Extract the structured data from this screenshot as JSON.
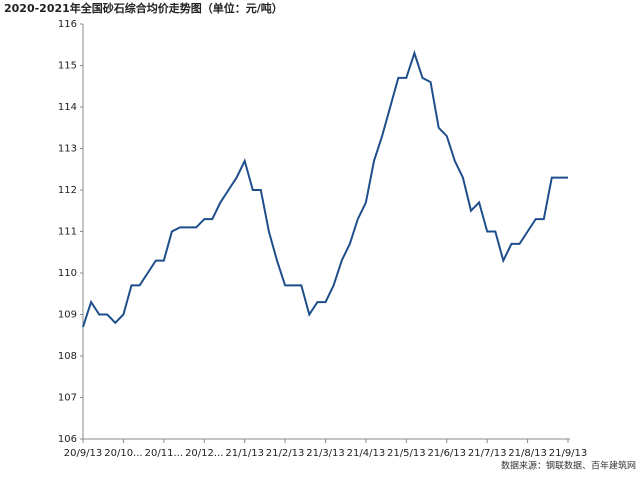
{
  "chart_data": {
    "type": "line",
    "title": "2020-2021年全国砂石综合均价走势图（单位：元/吨）",
    "source": "数据来源：钢联数据、百年建筑网",
    "categories": [
      "20/9/13",
      null,
      null,
      null,
      null,
      "20/10...",
      null,
      null,
      null,
      null,
      "20/11...",
      null,
      null,
      null,
      null,
      "20/12...",
      null,
      null,
      null,
      null,
      "21/1/13",
      null,
      null,
      null,
      null,
      "21/2/13",
      null,
      null,
      null,
      null,
      "21/3/13",
      null,
      null,
      null,
      null,
      "21/4/13",
      null,
      null,
      null,
      null,
      "21/5/13",
      null,
      null,
      null,
      null,
      "21/6/13",
      null,
      null,
      null,
      null,
      "21/7/13",
      null,
      null,
      null,
      null,
      "21/8/13",
      null,
      null,
      null,
      null,
      "21/9/13"
    ],
    "series": [
      {
        "name": "砂石综合均价",
        "color": "#1f4e8c",
        "values": [
          108.7,
          109.3,
          109.0,
          109.0,
          108.8,
          109.0,
          109.7,
          109.7,
          110.0,
          110.3,
          110.3,
          111.0,
          111.1,
          111.1,
          111.1,
          111.3,
          111.3,
          111.7,
          112.0,
          112.3,
          112.7,
          112.0,
          112.0,
          111.0,
          110.3,
          109.7,
          109.7,
          109.7,
          109.0,
          109.3,
          109.3,
          109.7,
          110.3,
          110.7,
          111.3,
          111.7,
          112.7,
          113.3,
          114.0,
          114.7,
          114.7,
          115.3,
          114.7,
          114.6,
          113.5,
          113.3,
          112.7,
          112.3,
          111.5,
          111.7,
          111.0,
          111.0,
          110.3,
          110.7,
          110.7,
          111.0,
          111.3,
          111.3,
          112.3,
          112.3,
          112.3
        ]
      }
    ],
    "ylim": [
      106,
      116
    ],
    "yticks": [
      106,
      107,
      108,
      109,
      110,
      111,
      112,
      113,
      114,
      115,
      116
    ],
    "grid": false
  }
}
